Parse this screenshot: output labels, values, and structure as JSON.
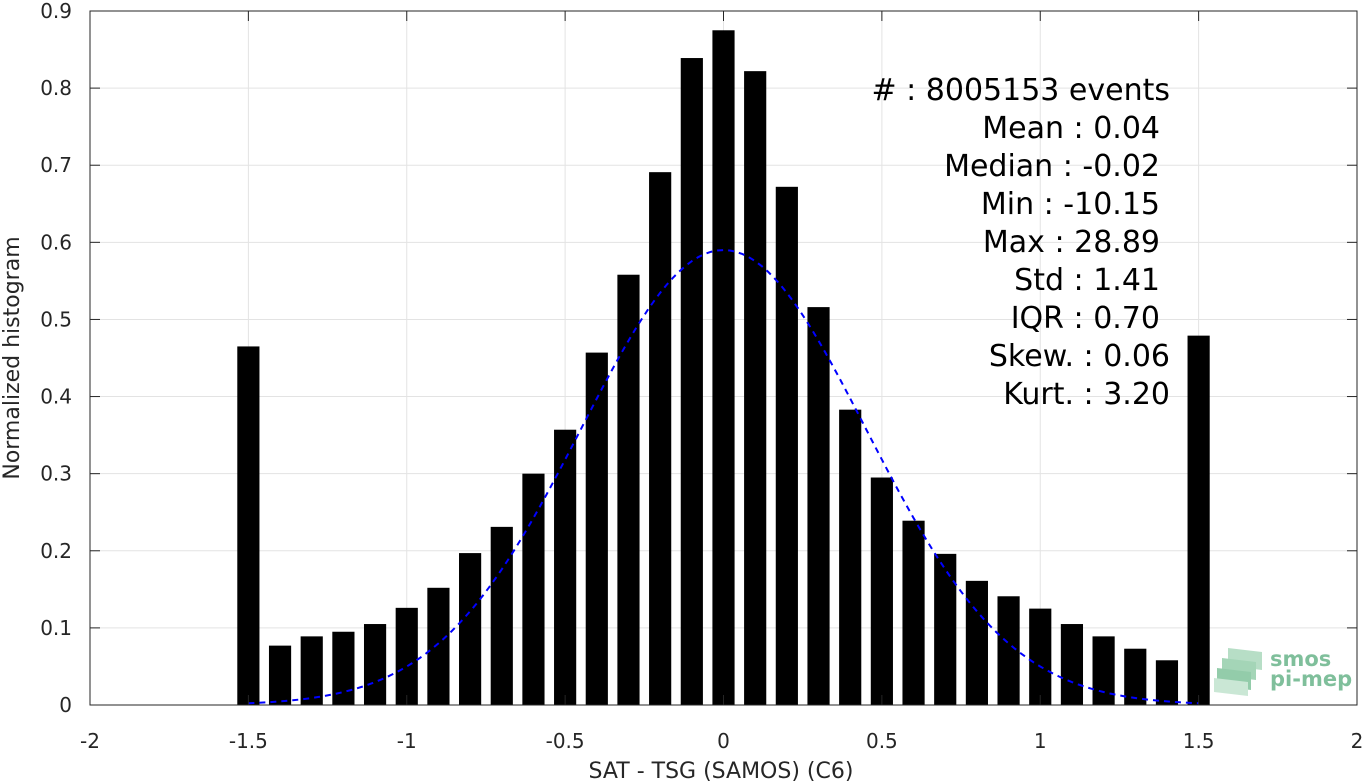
{
  "chart_data": {
    "type": "bar",
    "xlabel": "SAT - TSG (SAMOS) (C6)",
    "ylabel": "Normalized histogram",
    "xlim": [
      -2,
      2
    ],
    "ylim": [
      0,
      0.9
    ],
    "xticks": [
      -2,
      -1.5,
      -1,
      -0.5,
      0,
      0.5,
      1,
      1.5,
      2
    ],
    "xtick_labels": [
      "-2",
      "-1.5",
      "-1",
      "-0.5",
      "0",
      "0.5",
      "1",
      "1.5",
      "2"
    ],
    "yticks": [
      0,
      0.1,
      0.2,
      0.3,
      0.4,
      0.5,
      0.6,
      0.7,
      0.8,
      0.9
    ],
    "ytick_labels": [
      "0",
      "0.1",
      "0.2",
      "0.3",
      "0.4",
      "0.5",
      "0.6",
      "0.7",
      "0.8",
      "0.9"
    ],
    "grid": true,
    "bar_color": "#000000",
    "bar_width": 0.07,
    "x": [
      -1.5,
      -1.4,
      -1.3,
      -1.2,
      -1.1,
      -1.0,
      -0.9,
      -0.8,
      -0.7,
      -0.6,
      -0.5,
      -0.4,
      -0.3,
      -0.2,
      -0.1,
      0.0,
      0.1,
      0.2,
      0.3,
      0.4,
      0.5,
      0.6,
      0.7,
      0.8,
      0.9,
      1.0,
      1.1,
      1.2,
      1.3,
      1.4,
      1.5
    ],
    "values": [
      0.465,
      0.077,
      0.089,
      0.095,
      0.105,
      0.126,
      0.152,
      0.197,
      0.231,
      0.3,
      0.357,
      0.457,
      0.558,
      0.691,
      0.839,
      0.875,
      0.822,
      0.672,
      0.516,
      0.383,
      0.295,
      0.239,
      0.196,
      0.161,
      0.141,
      0.125,
      0.105,
      0.089,
      0.073,
      0.058,
      0.479
    ],
    "fit_curve": {
      "type": "normal",
      "mean": 0.0,
      "std": 0.45,
      "peak": 0.59,
      "x_range": [
        -1.5,
        1.5
      ],
      "color": "#0000ff",
      "style": "dashed"
    },
    "annotations": [
      "#  : 8005153 events",
      "Mean : 0.04",
      "Median : -0.02",
      "Min : -10.15",
      "Max : 28.89",
      "Std : 1.41",
      "IQR : 0.70",
      "Skew. : 0.06",
      "Kurt. : 3.20"
    ]
  },
  "logo": {
    "line1": "smos",
    "line2": "pi-mep",
    "color": "#7fbf9b"
  }
}
